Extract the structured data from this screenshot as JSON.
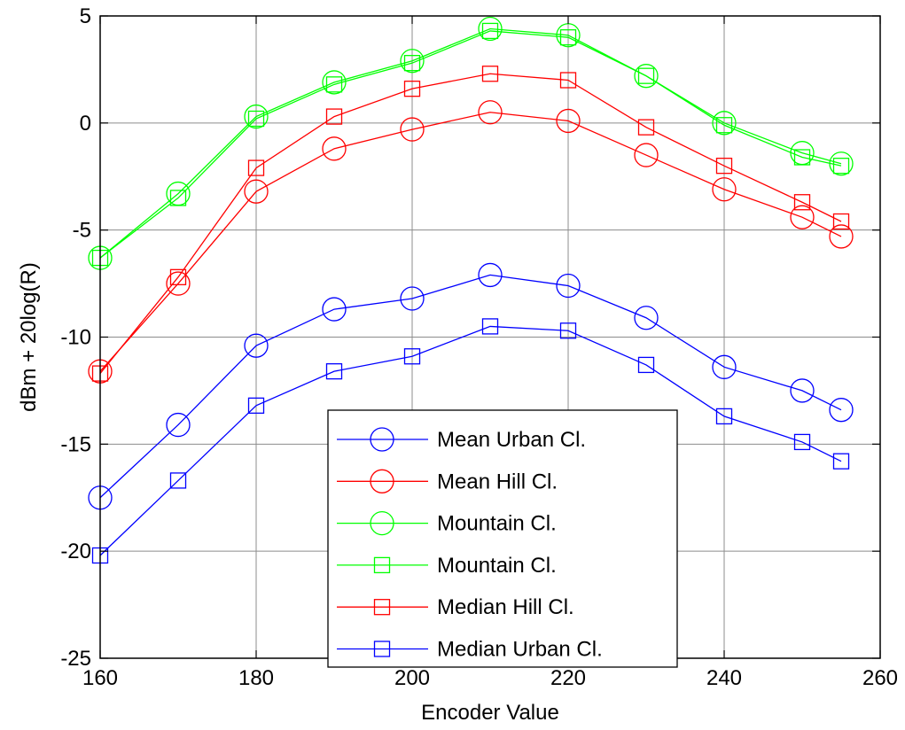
{
  "chart_data": {
    "type": "line",
    "title": "",
    "xlabel": "Encoder Value",
    "ylabel": "dBm + 20log(R)",
    "xlim": [
      160,
      260
    ],
    "ylim": [
      -25,
      5
    ],
    "xticks": [
      160,
      180,
      200,
      220,
      240,
      260
    ],
    "yticks": [
      -25,
      -20,
      -15,
      -10,
      -5,
      0,
      5
    ],
    "grid": true,
    "legend_position": "bottom-center",
    "x": [
      160,
      170,
      180,
      190,
      200,
      210,
      220,
      230,
      240,
      250,
      255
    ],
    "series": [
      {
        "name": "Mean Urban Cl.",
        "marker": "circle",
        "color": "#0000ff",
        "values": [
          -17.5,
          -14.1,
          -10.4,
          -8.7,
          -8.2,
          -7.1,
          -7.6,
          -9.1,
          -11.4,
          -12.5,
          -13.4
        ]
      },
      {
        "name": "Mean Hill Cl.",
        "marker": "circle",
        "color": "#ff0000",
        "values": [
          -11.6,
          -7.5,
          -3.2,
          -1.2,
          -0.3,
          0.5,
          0.1,
          -1.5,
          -3.1,
          -4.4,
          -5.3
        ]
      },
      {
        "name": "Mountain Cl.",
        "marker": "circle",
        "color": "#00ff00",
        "values": [
          -6.3,
          -3.3,
          0.3,
          1.9,
          2.9,
          4.4,
          4.1,
          2.2,
          0.0,
          -1.4,
          -1.9
        ]
      },
      {
        "name": "Mountain Cl.",
        "marker": "square",
        "color": "#00ff00",
        "values": [
          -6.3,
          -3.5,
          0.2,
          1.8,
          2.8,
          4.3,
          4.0,
          2.2,
          -0.1,
          -1.6,
          -2.0
        ]
      },
      {
        "name": "Median Hill Cl.",
        "marker": "square",
        "color": "#ff0000",
        "values": [
          -11.7,
          -7.2,
          -2.1,
          0.3,
          1.6,
          2.3,
          2.0,
          -0.2,
          -2.0,
          -3.7,
          -4.6
        ]
      },
      {
        "name": "Median Urban Cl.",
        "marker": "square",
        "color": "#0000ff",
        "values": [
          -20.2,
          -16.7,
          -13.2,
          -11.6,
          -10.9,
          -9.5,
          -9.7,
          -11.3,
          -13.7,
          -14.9,
          -15.8
        ]
      }
    ]
  }
}
